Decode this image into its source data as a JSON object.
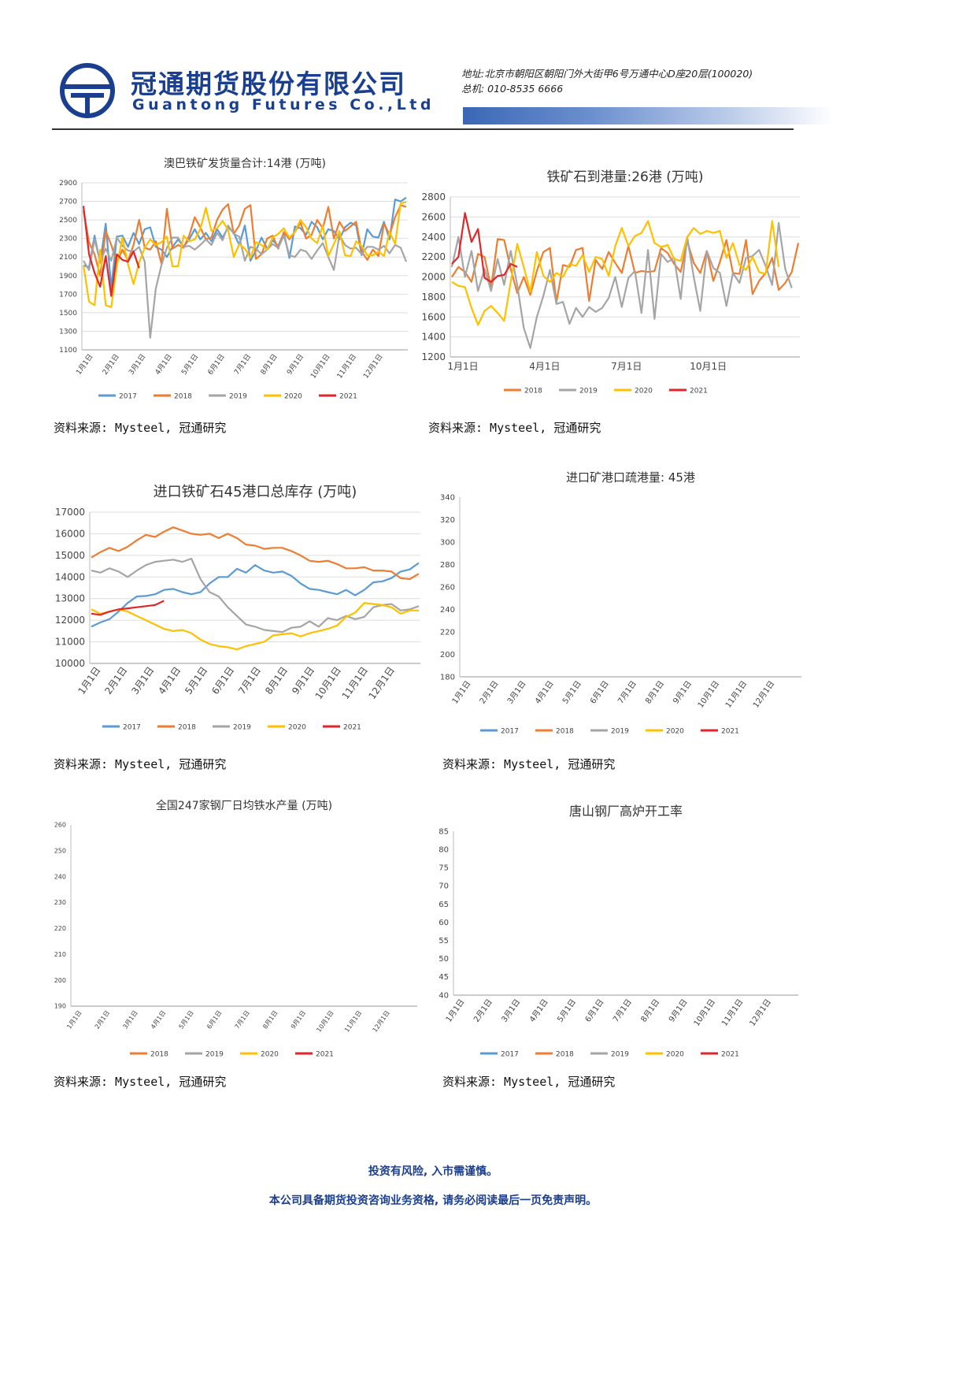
{
  "header": {
    "company_cn": "冠通期货股份有限公司",
    "company_en": "Guantong Futures Co.,Ltd",
    "address": "地址:北京市朝阳区朝阳门外大街甲6号万通中心D座20层(100020)",
    "phone": "总机: 010-8535 6666",
    "brand_color": "#1b3f8f"
  },
  "series_colors": {
    "2017": "#5b9bd5",
    "2018": "#ed7d31",
    "2019": "#a5a5a5",
    "2020": "#ffc000",
    "2021": "#e0262b"
  },
  "sources": {
    "c1": "资料来源: Mysteel, 冠通研究",
    "c2": "资料来源: Mysteel, 冠通研究",
    "c3": "资料来源: Mysteel, 冠通研究",
    "c4": "资料来源: Mysteel, 冠通研究",
    "c5": "资料来源: Mysteel, 冠通研究",
    "c6": "资料来源: Mysteel, 冠通研究"
  },
  "footer": {
    "line1": "投资有风险, 入市需谨慎。",
    "line2": "本公司具备期货投资咨询业务资格, 请务必阅读最后一页免责声明。"
  },
  "chart_data": [
    {
      "id": "c1",
      "type": "line",
      "title": "澳巴铁矿发货量合计:14港 (万吨)",
      "ylim": [
        1100,
        2900
      ],
      "yticks": [
        2900,
        2700,
        2500,
        2300,
        2100,
        1900,
        1700,
        1500,
        1300,
        1100
      ],
      "x_tick_labels": [
        "1月1日",
        "2月1日",
        "3月1日",
        "4月1日",
        "5月1日",
        "6月1日",
        "7月1日",
        "8月1日",
        "9月1日",
        "10月1日",
        "11月1日",
        "12月1日"
      ],
      "legend": [
        "2017",
        "2018",
        "2019",
        "2020",
        "2021"
      ],
      "legend_position": "bottom",
      "grid": true,
      "series": [
        {
          "name": "2017",
          "values": [
            2010,
            1990,
            2330,
            2040,
            2460,
            1770,
            2320,
            2330,
            2210,
            2360,
            2240,
            2400,
            2420,
            2210,
            2180,
            2100,
            2210,
            2290,
            2210,
            2290,
            2400,
            2290,
            2360,
            2270,
            2400,
            2310,
            2420,
            2360,
            2230,
            2440,
            2060,
            2170,
            2310,
            2190,
            2280,
            2220,
            2360,
            2090,
            2430,
            2410,
            2340,
            2480,
            2420,
            2290,
            2400,
            2380,
            2290,
            2420,
            2470,
            2440,
            2120,
            2400,
            2320,
            2310,
            2480,
            2290,
            2720,
            2700,
            2740
          ]
        },
        {
          "name": "2018",
          "values": [
            2600,
            2260,
            2130,
            1900,
            2380,
            2230,
            2040,
            2180,
            2060,
            2230,
            2500,
            2200,
            2180,
            2270,
            2030,
            2620,
            2190,
            2230,
            2200,
            2330,
            2530,
            2420,
            2290,
            2310,
            2500,
            2610,
            2670,
            2350,
            2440,
            2620,
            2660,
            2080,
            2130,
            2300,
            2330,
            2190,
            2370,
            2290,
            2370,
            2470,
            2300,
            2340,
            2500,
            2410,
            2640,
            2300,
            2480,
            2380,
            2430,
            2480,
            2160,
            2070,
            2180,
            2110,
            2460,
            2340,
            2530,
            2660,
            2640
          ]
        },
        {
          "name": "2019",
          "values": [
            2060,
            1960,
            2290,
            2050,
            2190,
            2060,
            2310,
            2220,
            2170,
            2160,
            2210,
            2050,
            1230,
            1760,
            2010,
            2200,
            2310,
            2310,
            2210,
            2220,
            2180,
            2230,
            2290,
            2230,
            2360,
            2280,
            2440,
            2350,
            2320,
            2060,
            2210,
            2190,
            2130,
            2180,
            2240,
            2200,
            2330,
            2120,
            2100,
            2180,
            2160,
            2080,
            2170,
            2250,
            2100,
            1960,
            2340,
            2230,
            2190,
            2200,
            2130,
            2210,
            2210,
            2180,
            2220,
            2140,
            2230,
            2200,
            2050
          ]
        },
        {
          "name": "2020",
          "values": [
            2010,
            1620,
            1580,
            2180,
            1580,
            1560,
            2000,
            2310,
            2020,
            1810,
            2040,
            2200,
            2290,
            2230,
            2260,
            2320,
            2000,
            2000,
            2330,
            2270,
            2290,
            2400,
            2630,
            2380,
            2410,
            2490,
            2390,
            2100,
            2240,
            2190,
            2090,
            2260,
            2230,
            2180,
            2310,
            2350,
            2410,
            2310,
            2370,
            2500,
            2420,
            2300,
            2250,
            2440,
            2110,
            2240,
            2380,
            2120,
            2110,
            2270,
            2220,
            2120,
            2120,
            2160,
            2110,
            2370,
            2240,
            2680,
            2690
          ]
        },
        {
          "name": "2021",
          "values": [
            2650,
            2130,
            1930,
            1780,
            2110,
            1680,
            2130,
            2070,
            2050,
            2160,
            1980
          ]
        }
      ]
    },
    {
      "id": "c2",
      "type": "line",
      "title": "铁矿石到港量:26港 (万吨)",
      "ylim": [
        1200,
        2800
      ],
      "yticks": [
        2800,
        2600,
        2400,
        2200,
        2000,
        1800,
        1600,
        1400,
        1200
      ],
      "x_tick_labels": [
        "1月1日",
        "4月1日",
        "7月1日",
        "10月1日"
      ],
      "legend": [
        "2018",
        "2019",
        "2020",
        "2021"
      ],
      "legend_position": "bottom",
      "grid": true,
      "series": [
        {
          "name": "2018",
          "values": [
            2000,
            2100,
            2050,
            1950,
            2230,
            2200,
            1890,
            2380,
            2370,
            2080,
            1840,
            2000,
            1820,
            2060,
            2250,
            2290,
            1750,
            2120,
            2100,
            2270,
            2290,
            1760,
            2170,
            2080,
            2250,
            2140,
            2040,
            2310,
            2040,
            2060,
            2050,
            2060,
            2290,
            2240,
            2130,
            2050,
            2360,
            2140,
            2040,
            2260,
            1960,
            2150,
            2370,
            2040,
            2030,
            2370,
            1830,
            1960,
            2040,
            2190,
            1870,
            1940,
            2050,
            2340
          ]
        },
        {
          "name": "2019",
          "values": [
            2100,
            2400,
            2000,
            2260,
            1860,
            2080,
            1860,
            2180,
            1920,
            2260,
            1920,
            1490,
            1290,
            1600,
            1810,
            2070,
            1730,
            1750,
            1530,
            1690,
            1600,
            1700,
            1650,
            1690,
            1790,
            2000,
            1700,
            1990,
            2060,
            1640,
            2270,
            1580,
            2230,
            2150,
            2190,
            1780,
            2400,
            2000,
            1660,
            2260,
            2090,
            2040,
            1710,
            2040,
            1940,
            2190,
            2210,
            2270,
            2110,
            1920,
            2540,
            2080,
            1890
          ]
        },
        {
          "name": "2020",
          "values": [
            1950,
            1910,
            1900,
            1690,
            1520,
            1660,
            1710,
            1640,
            1560,
            1950,
            2330,
            2100,
            1850,
            2250,
            2010,
            1950,
            2040,
            2000,
            2130,
            2110,
            2220,
            2050,
            2200,
            2180,
            2010,
            2310,
            2490,
            2310,
            2410,
            2440,
            2560,
            2340,
            2300,
            2320,
            2180,
            2160,
            2400,
            2490,
            2430,
            2460,
            2440,
            2460,
            2190,
            2340,
            2120,
            2070,
            2200,
            2050,
            2030,
            2560,
            2100
          ]
        },
        {
          "name": "2021",
          "values": [
            2130,
            2200,
            2640,
            2350,
            2480,
            1990,
            1950,
            2010,
            2020,
            2130,
            2100
          ]
        }
      ]
    },
    {
      "id": "c3",
      "type": "line",
      "title": "进口铁矿石45港口总库存 (万吨)",
      "ylim": [
        10000,
        17000
      ],
      "yticks": [
        17000,
        16000,
        15000,
        14000,
        13000,
        12000,
        11000,
        10000
      ],
      "x_tick_labels": [
        "1月1日",
        "2月1日",
        "3月1日",
        "4月1日",
        "5月1日",
        "6月1日",
        "7月1日",
        "8月1日",
        "9月1日",
        "10月1日",
        "11月1日",
        "12月1日"
      ],
      "legend": [
        "2017",
        "2018",
        "2019",
        "2020",
        "2021"
      ],
      "legend_position": "bottom",
      "grid": true,
      "series": [
        {
          "name": "2017",
          "values": [
            11700,
            11900,
            12050,
            12400,
            12800,
            13100,
            13120,
            13200,
            13400,
            13450,
            13300,
            13200,
            13300,
            13700,
            14000,
            14000,
            14380,
            14200,
            14550,
            14300,
            14200,
            14250,
            14050,
            13700,
            13450,
            13400,
            13300,
            13200,
            13400,
            13150,
            13400,
            13750,
            13800,
            13950,
            14250,
            14350,
            14650
          ]
        },
        {
          "name": "2018",
          "values": [
            14900,
            15150,
            15350,
            15200,
            15400,
            15700,
            15950,
            15850,
            16100,
            16300,
            16150,
            16000,
            15950,
            16000,
            15800,
            16000,
            15800,
            15500,
            15450,
            15300,
            15350,
            15350,
            15200,
            15000,
            14750,
            14700,
            14750,
            14600,
            14400,
            14400,
            14450,
            14300,
            14300,
            14250,
            13950,
            13900,
            14150
          ]
        },
        {
          "name": "2019",
          "values": [
            14300,
            14200,
            14400,
            14250,
            14000,
            14300,
            14550,
            14700,
            14750,
            14800,
            14700,
            14850,
            13900,
            13300,
            13100,
            12600,
            12200,
            11800,
            11700,
            11550,
            11500,
            11450,
            11650,
            11700,
            11950,
            11700,
            12100,
            12000,
            12200,
            12050,
            12150,
            12600,
            12700,
            12750,
            12450,
            12500,
            12650
          ]
        },
        {
          "name": "2020",
          "values": [
            12500,
            12300,
            12400,
            12500,
            12400,
            12200,
            12000,
            11800,
            11600,
            11500,
            11550,
            11400,
            11100,
            10900,
            10800,
            10750,
            10650,
            10800,
            10900,
            11000,
            11300,
            11350,
            11400,
            11250,
            11400,
            11500,
            11600,
            11750,
            12150,
            12350,
            12800,
            12750,
            12700,
            12600,
            12300,
            12450,
            12450
          ]
        },
        {
          "name": "2021",
          "values": [
            12300,
            12250,
            12400,
            12500,
            12550,
            12600,
            12650,
            12700,
            12900
          ]
        }
      ]
    },
    {
      "id": "c4",
      "type": "line",
      "title": "进口矿港口疏港量: 45港",
      "ylim": [
        180,
        340
      ],
      "yticks": [
        340,
        320,
        300,
        280,
        260,
        240,
        220,
        200,
        180
      ],
      "x_tick_labels": [
        "1月1日",
        "2月1日",
        "3月1日",
        "4月1日",
        "5月1日",
        "6月1日",
        "7月1日",
        "8月1日",
        "9月1日",
        "10月1日",
        "11月1日",
        "12月1日"
      ],
      "legend": [
        "2017",
        "2018",
        "2019",
        "2020",
        "2021"
      ],
      "legend_position": "bottom",
      "grid": false,
      "series": []
    },
    {
      "id": "c5",
      "type": "line",
      "title": "全国247家钢厂日均铁水产量 (万吨)",
      "ylim": [
        190,
        260
      ],
      "yticks": [
        260,
        250,
        240,
        230,
        220,
        210,
        200,
        190
      ],
      "x_tick_labels": [
        "1月1日",
        "2月1日",
        "3月1日",
        "4月1日",
        "5月1日",
        "6月1日",
        "7月1日",
        "8月1日",
        "9月1日",
        "10月1日",
        "11月1日",
        "12月1日"
      ],
      "legend": [
        "2018",
        "2019",
        "2020",
        "2021"
      ],
      "legend_position": "bottom",
      "grid": false,
      "series": []
    },
    {
      "id": "c6",
      "type": "line",
      "title": "唐山钢厂高炉开工率",
      "ylim": [
        40,
        85
      ],
      "yticks": [
        85,
        80,
        75,
        70,
        65,
        60,
        55,
        50,
        45,
        40
      ],
      "x_tick_labels": [
        "1月1日",
        "2月1日",
        "3月1日",
        "4月1日",
        "5月1日",
        "6月1日",
        "7月1日",
        "8月1日",
        "9月1日",
        "10月1日",
        "11月1日",
        "12月1日"
      ],
      "legend": [
        "2017",
        "2018",
        "2019",
        "2020",
        "2021"
      ],
      "legend_position": "bottom",
      "grid": false,
      "series": []
    }
  ]
}
